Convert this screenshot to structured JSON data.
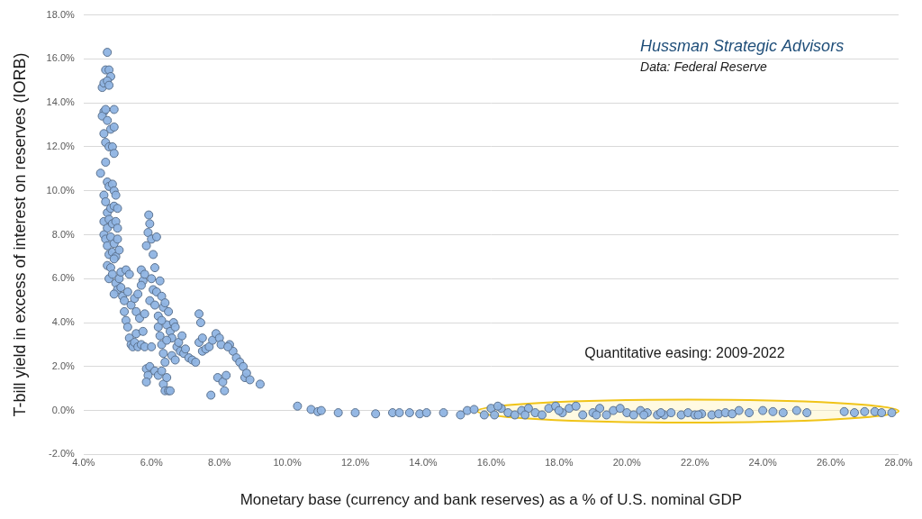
{
  "chart_data": {
    "type": "scatter",
    "credit": "Hussman Strategic Advisors",
    "source": "Data: Federal Reserve",
    "xlabel": "Monetary base (currency and bank reserves) as a % of U.S. nominal GDP",
    "ylabel": "T-bill yield in excess of interest on reserves (IORB)",
    "color": "#8fb4e3",
    "marker": "circle",
    "grid": "y",
    "xlim": [
      4,
      28
    ],
    "xticks": [
      {
        "value": 4,
        "label": "4.0%"
      },
      {
        "value": 6,
        "label": "6.0%"
      },
      {
        "value": 8,
        "label": "8.0%"
      },
      {
        "value": 10,
        "label": "10.0%"
      },
      {
        "value": 12,
        "label": "12.0%"
      },
      {
        "value": 14,
        "label": "14.0%"
      },
      {
        "value": 16,
        "label": "16.0%"
      },
      {
        "value": 18,
        "label": "18.0%"
      },
      {
        "value": 20,
        "label": "20.0%"
      },
      {
        "value": 22,
        "label": "22.0%"
      },
      {
        "value": 24,
        "label": "24.0%"
      },
      {
        "value": 26,
        "label": "26.0%"
      },
      {
        "value": 28,
        "label": "28.0%"
      }
    ],
    "ylim": [
      -2,
      18
    ],
    "yticks": [
      {
        "value": -2,
        "label": "-2.0%"
      },
      {
        "value": 0,
        "label": "0.0%"
      },
      {
        "value": 2,
        "label": "2.0%"
      },
      {
        "value": 4,
        "label": "4.0%"
      },
      {
        "value": 6,
        "label": "6.0%"
      },
      {
        "value": 8,
        "label": "8.0%"
      },
      {
        "value": 10,
        "label": "10.0%"
      },
      {
        "value": 12,
        "label": "12.0%"
      },
      {
        "value": 14,
        "label": "14.0%"
      },
      {
        "value": 16,
        "label": "16.0%"
      },
      {
        "value": 18,
        "label": "18.0%"
      }
    ],
    "annotations": [
      {
        "text": "Quantitative easing: 2009-2022",
        "x": 21.7,
        "y": 2.6,
        "region": {
          "xlim": [
            15.6,
            28.0
          ],
          "ylim": [
            -0.55,
            0.5
          ]
        }
      }
    ],
    "x": [
      4.7,
      4.65,
      4.75,
      4.8,
      4.55,
      4.6,
      4.7,
      4.75,
      4.6,
      4.55,
      4.65,
      4.9,
      4.7,
      4.8,
      4.9,
      4.6,
      4.65,
      4.75,
      4.85,
      4.9,
      4.5,
      4.65,
      4.7,
      4.75,
      4.85,
      4.9,
      4.95,
      4.6,
      4.65,
      4.7,
      4.8,
      4.9,
      5.0,
      4.6,
      4.7,
      4.75,
      4.85,
      4.95,
      5.0,
      4.6,
      4.65,
      4.7,
      4.8,
      4.9,
      5.0,
      4.75,
      4.85,
      4.95,
      5.05,
      4.7,
      4.8,
      4.9,
      4.75,
      4.85,
      4.95,
      5.0,
      4.9,
      5.05,
      5.1,
      5.1,
      5.15,
      5.2,
      5.25,
      5.3,
      5.35,
      5.2,
      5.25,
      5.3,
      5.35,
      5.4,
      5.45,
      5.5,
      5.4,
      5.5,
      5.55,
      5.6,
      5.65,
      5.55,
      5.6,
      5.7,
      5.75,
      5.8,
      5.85,
      5.9,
      5.85,
      5.95,
      5.7,
      5.75,
      5.8,
      5.85,
      5.9,
      5.92,
      5.95,
      6.0,
      6.05,
      6.1,
      6.15,
      6.0,
      6.05,
      5.95,
      6.1,
      6.15,
      6.2,
      6.25,
      6.3,
      6.35,
      6.4,
      6.2,
      6.25,
      6.3,
      6.35,
      6.4,
      6.1,
      6.2,
      6.3,
      6.35,
      6.4,
      6.45,
      6.5,
      6.55,
      6.45,
      6.5,
      6.55,
      6.6,
      6.65,
      6.7,
      6.75,
      6.8,
      6.85,
      6.9,
      6.95,
      7.0,
      7.1,
      7.2,
      7.3,
      7.4,
      7.45,
      7.4,
      7.5,
      7.5,
      7.6,
      7.7,
      7.75,
      7.8,
      7.9,
      8.0,
      7.95,
      8.1,
      8.15,
      8.2,
      8.3,
      8.4,
      8.5,
      8.6,
      8.7,
      8.75,
      8.8,
      8.9,
      9.2,
      6.3,
      6.45,
      6.0,
      5.8,
      5.7,
      6.6,
      6.7,
      8.05,
      8.25,
      10.3,
      10.7,
      10.9,
      11.0,
      11.5,
      12.0,
      12.6,
      13.1,
      13.3,
      13.6,
      13.9,
      14.1,
      14.6,
      15.1,
      15.3,
      15.5,
      15.8,
      16.0,
      16.1,
      16.3,
      16.5,
      16.7,
      16.9,
      17.1,
      17.3,
      17.5,
      17.7,
      17.9,
      18.1,
      18.3,
      18.5,
      18.7,
      19.0,
      19.2,
      19.4,
      19.6,
      19.8,
      20.0,
      20.2,
      20.4,
      20.6,
      20.9,
      21.1,
      21.3,
      21.6,
      21.8,
      22.0,
      22.2,
      22.5,
      22.7,
      22.9,
      23.1,
      23.3,
      23.6,
      24.0,
      24.3,
      24.6,
      25.0,
      25.3,
      26.4,
      26.7,
      27.0,
      27.3,
      27.5,
      27.8,
      16.2,
      17.0,
      18.0,
      19.1,
      20.5,
      21.0,
      22.1
    ],
    "values": [
      16.3,
      15.5,
      15.5,
      15.2,
      14.7,
      14.9,
      15.0,
      14.8,
      13.6,
      13.4,
      13.7,
      13.7,
      13.2,
      12.8,
      12.9,
      12.6,
      12.2,
      12.0,
      12.0,
      11.7,
      10.8,
      11.3,
      10.4,
      10.2,
      10.3,
      10.0,
      9.8,
      9.8,
      9.5,
      9.0,
      9.2,
      9.3,
      9.2,
      8.6,
      8.3,
      8.7,
      8.5,
      8.6,
      8.3,
      8.0,
      7.8,
      7.5,
      7.9,
      7.6,
      7.8,
      7.1,
      7.2,
      7.0,
      7.3,
      6.6,
      6.5,
      6.9,
      6.0,
      6.2,
      5.8,
      5.5,
      5.3,
      6.0,
      5.6,
      6.3,
      5.2,
      5.0,
      6.4,
      5.4,
      6.2,
      4.5,
      4.1,
      3.8,
      3.3,
      3.0,
      2.9,
      3.1,
      4.8,
      5.1,
      4.5,
      5.3,
      4.2,
      3.5,
      2.9,
      3.0,
      3.6,
      2.9,
      1.9,
      1.6,
      1.3,
      2.0,
      6.4,
      5.9,
      6.2,
      7.5,
      8.1,
      8.9,
      8.5,
      7.8,
      7.1,
      6.5,
      7.9,
      6.0,
      5.5,
      5.0,
      4.8,
      5.4,
      4.3,
      5.9,
      5.2,
      4.7,
      4.9,
      3.8,
      3.4,
      3.0,
      2.6,
      2.2,
      1.8,
      1.6,
      1.8,
      1.2,
      0.9,
      1.5,
      0.9,
      0.9,
      3.9,
      4.5,
      3.6,
      3.3,
      4.0,
      3.8,
      2.9,
      3.1,
      2.7,
      3.4,
      2.6,
      2.8,
      2.4,
      2.3,
      2.2,
      4.4,
      4.0,
      3.1,
      3.3,
      2.7,
      2.8,
      2.9,
      0.7,
      3.2,
      3.5,
      3.3,
      1.5,
      1.3,
      0.9,
      1.6,
      3.0,
      2.7,
      2.4,
      2.2,
      2.0,
      1.5,
      1.7,
      1.4,
      1.2,
      4.1,
      3.2,
      2.9,
      4.4,
      5.7,
      2.5,
      2.3,
      3.0,
      2.9,
      0.2,
      0.05,
      -0.05,
      0.0,
      -0.1,
      -0.1,
      -0.15,
      -0.1,
      -0.1,
      -0.1,
      -0.15,
      -0.1,
      -0.1,
      -0.2,
      0.0,
      0.05,
      -0.2,
      0.1,
      -0.2,
      0.1,
      -0.1,
      -0.2,
      0.0,
      0.1,
      -0.1,
      -0.2,
      0.1,
      0.2,
      -0.1,
      0.1,
      0.2,
      -0.2,
      -0.1,
      0.1,
      -0.2,
      0.0,
      0.1,
      -0.1,
      -0.2,
      0.0,
      -0.1,
      -0.2,
      -0.2,
      -0.1,
      -0.2,
      -0.1,
      -0.2,
      -0.15,
      -0.2,
      -0.15,
      -0.1,
      -0.15,
      0.0,
      -0.1,
      0.0,
      -0.05,
      -0.1,
      0.0,
      -0.1,
      -0.05,
      -0.1,
      -0.05,
      -0.05,
      -0.1,
      -0.1,
      0.2,
      -0.2,
      0.0,
      -0.2,
      -0.2,
      -0.1,
      -0.2
    ]
  }
}
